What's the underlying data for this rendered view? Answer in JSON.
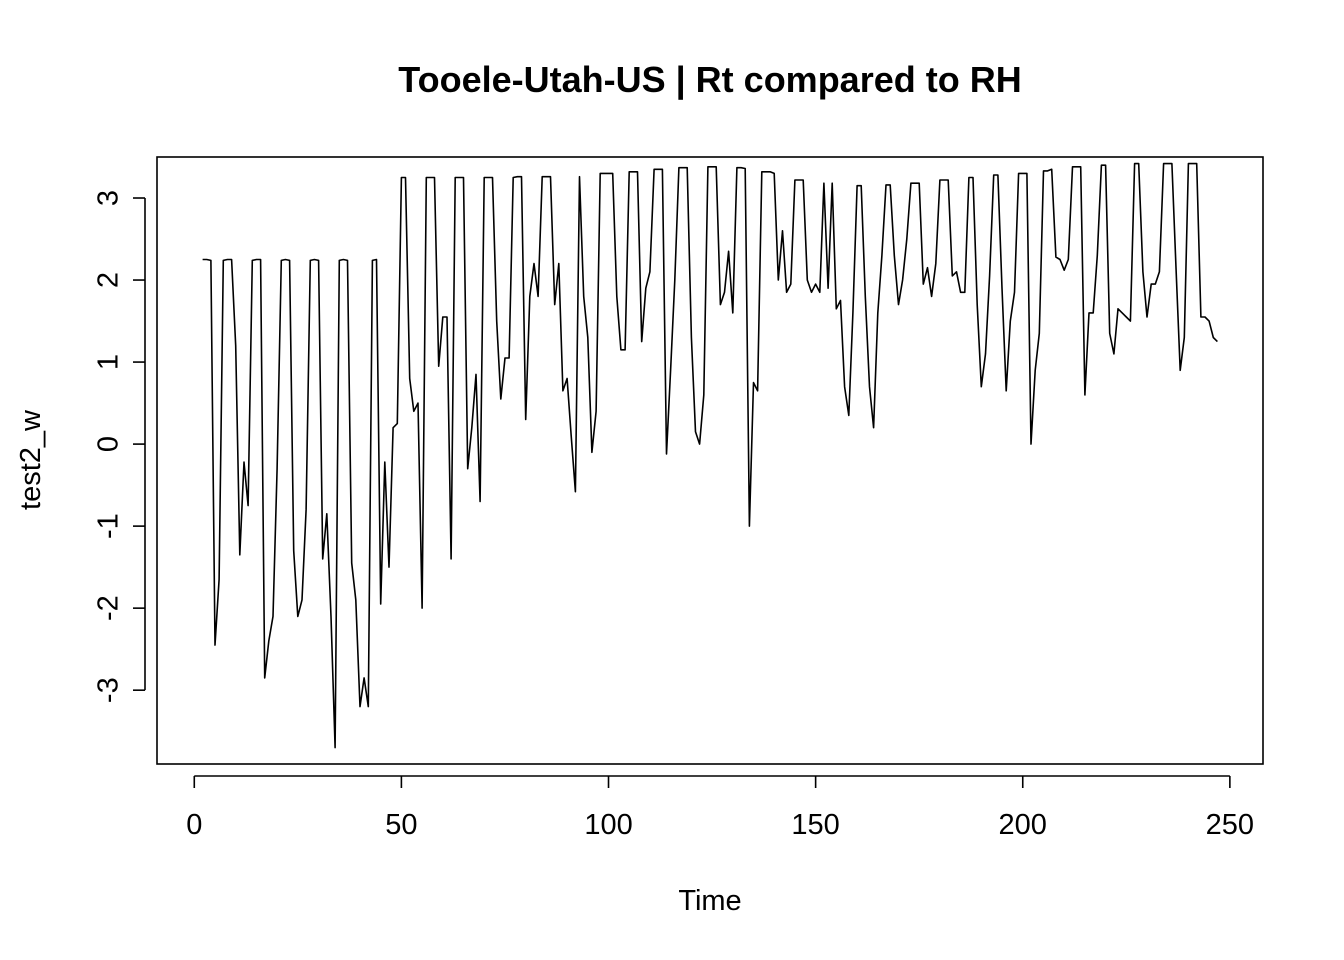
{
  "chart_data": {
    "type": "line",
    "title": "Tooele-Utah-US | Rt compared to RH",
    "xlabel": "Time",
    "ylabel": "test2_w",
    "xlim": [
      -9,
      258
    ],
    "ylim": [
      -3.9,
      3.5
    ],
    "xticks": [
      0,
      50,
      100,
      150,
      200,
      250
    ],
    "yticks": [
      -3,
      -2,
      -1,
      0,
      1,
      2,
      3
    ],
    "grid": false,
    "legend": "none",
    "line_color": "#000000",
    "series": [
      {
        "values": [
          [
            2,
            2.25
          ],
          [
            3,
            2.25
          ],
          [
            4,
            2.24
          ],
          [
            5,
            -2.45
          ],
          [
            6,
            -1.65
          ],
          [
            7,
            2.24
          ],
          [
            8,
            2.25
          ],
          [
            9,
            2.25
          ],
          [
            10,
            1.2
          ],
          [
            11,
            -1.35
          ],
          [
            12,
            -0.22
          ],
          [
            13,
            -0.75
          ],
          [
            14,
            2.24
          ],
          [
            15,
            2.25
          ],
          [
            16,
            2.25
          ],
          [
            17,
            -2.85
          ],
          [
            18,
            -2.4
          ],
          [
            19,
            -2.1
          ],
          [
            20,
            -0.3
          ],
          [
            21,
            2.24
          ],
          [
            22,
            2.25
          ],
          [
            23,
            2.24
          ],
          [
            24,
            -1.3
          ],
          [
            25,
            -2.1
          ],
          [
            26,
            -1.9
          ],
          [
            27,
            -0.8
          ],
          [
            28,
            2.24
          ],
          [
            29,
            2.25
          ],
          [
            30,
            2.24
          ],
          [
            31,
            -1.4
          ],
          [
            32,
            -0.85
          ],
          [
            33,
            -2.1
          ],
          [
            34,
            -3.7
          ],
          [
            35,
            2.24
          ],
          [
            36,
            2.25
          ],
          [
            37,
            2.24
          ],
          [
            38,
            -1.45
          ],
          [
            39,
            -1.9
          ],
          [
            40,
            -3.2
          ],
          [
            41,
            -2.85
          ],
          [
            42,
            -3.2
          ],
          [
            43,
            2.24
          ],
          [
            44,
            2.25
          ],
          [
            45,
            -1.95
          ],
          [
            46,
            -0.22
          ],
          [
            47,
            -1.5
          ],
          [
            48,
            0.2
          ],
          [
            49,
            0.25
          ],
          [
            50,
            3.25
          ],
          [
            51,
            3.25
          ],
          [
            52,
            0.8
          ],
          [
            53,
            0.4
          ],
          [
            54,
            0.5
          ],
          [
            55,
            -2.0
          ],
          [
            56,
            3.25
          ],
          [
            57,
            3.25
          ],
          [
            58,
            3.25
          ],
          [
            59,
            0.95
          ],
          [
            60,
            1.55
          ],
          [
            61,
            1.55
          ],
          [
            62,
            -1.4
          ],
          [
            63,
            3.25
          ],
          [
            64,
            3.25
          ],
          [
            65,
            3.25
          ],
          [
            66,
            -0.3
          ],
          [
            67,
            0.2
          ],
          [
            68,
            0.85
          ],
          [
            69,
            -0.7
          ],
          [
            70,
            3.25
          ],
          [
            71,
            3.25
          ],
          [
            72,
            3.25
          ],
          [
            73,
            1.5
          ],
          [
            74,
            0.55
          ],
          [
            75,
            1.05
          ],
          [
            76,
            1.05
          ],
          [
            77,
            3.25
          ],
          [
            78,
            3.26
          ],
          [
            79,
            3.26
          ],
          [
            80,
            0.3
          ],
          [
            81,
            1.8
          ],
          [
            82,
            2.2
          ],
          [
            83,
            1.8
          ],
          [
            84,
            3.26
          ],
          [
            85,
            3.26
          ],
          [
            86,
            3.26
          ],
          [
            87,
            1.7
          ],
          [
            88,
            2.2
          ],
          [
            89,
            0.65
          ],
          [
            90,
            0.8
          ],
          [
            91,
            0.1
          ],
          [
            92,
            -0.58
          ],
          [
            93,
            3.26
          ],
          [
            94,
            1.8
          ],
          [
            95,
            1.3
          ],
          [
            96,
            -0.1
          ],
          [
            97,
            0.4
          ],
          [
            98,
            3.3
          ],
          [
            99,
            3.3
          ],
          [
            100,
            3.3
          ],
          [
            101,
            3.3
          ],
          [
            102,
            1.8
          ],
          [
            103,
            1.15
          ],
          [
            104,
            1.15
          ],
          [
            105,
            3.32
          ],
          [
            106,
            3.32
          ],
          [
            107,
            3.32
          ],
          [
            108,
            1.25
          ],
          [
            109,
            1.9
          ],
          [
            110,
            2.1
          ],
          [
            111,
            3.35
          ],
          [
            112,
            3.35
          ],
          [
            113,
            3.35
          ],
          [
            114,
            -0.12
          ],
          [
            115,
            0.9
          ],
          [
            116,
            2.0
          ],
          [
            117,
            3.37
          ],
          [
            118,
            3.37
          ],
          [
            119,
            3.37
          ],
          [
            120,
            1.3
          ],
          [
            121,
            0.15
          ],
          [
            122,
            0.0
          ],
          [
            123,
            0.6
          ],
          [
            124,
            3.38
          ],
          [
            125,
            3.38
          ],
          [
            126,
            3.38
          ],
          [
            127,
            1.7
          ],
          [
            128,
            1.85
          ],
          [
            129,
            2.35
          ],
          [
            130,
            1.6
          ],
          [
            131,
            3.37
          ],
          [
            132,
            3.37
          ],
          [
            133,
            3.36
          ],
          [
            134,
            -1.0
          ],
          [
            135,
            0.75
          ],
          [
            136,
            0.65
          ],
          [
            137,
            3.32
          ],
          [
            138,
            3.32
          ],
          [
            139,
            3.32
          ],
          [
            140,
            3.3
          ],
          [
            141,
            2.0
          ],
          [
            142,
            2.6
          ],
          [
            143,
            1.85
          ],
          [
            144,
            1.95
          ],
          [
            145,
            3.22
          ],
          [
            146,
            3.22
          ],
          [
            147,
            3.22
          ],
          [
            148,
            2.0
          ],
          [
            149,
            1.85
          ],
          [
            150,
            1.95
          ],
          [
            151,
            1.85
          ],
          [
            152,
            3.18
          ],
          [
            153,
            1.9
          ],
          [
            154,
            3.18
          ],
          [
            155,
            1.65
          ],
          [
            156,
            1.75
          ],
          [
            157,
            0.7
          ],
          [
            158,
            0.35
          ],
          [
            159,
            1.6
          ],
          [
            160,
            3.15
          ],
          [
            161,
            3.15
          ],
          [
            162,
            1.8
          ],
          [
            163,
            0.7
          ],
          [
            164,
            0.2
          ],
          [
            165,
            1.6
          ],
          [
            166,
            2.3
          ],
          [
            167,
            3.16
          ],
          [
            168,
            3.16
          ],
          [
            169,
            2.3
          ],
          [
            170,
            1.7
          ],
          [
            171,
            2.0
          ],
          [
            172,
            2.5
          ],
          [
            173,
            3.18
          ],
          [
            174,
            3.18
          ],
          [
            175,
            3.18
          ],
          [
            176,
            1.95
          ],
          [
            177,
            2.15
          ],
          [
            178,
            1.8
          ],
          [
            179,
            2.2
          ],
          [
            180,
            3.22
          ],
          [
            181,
            3.22
          ],
          [
            182,
            3.22
          ],
          [
            183,
            2.05
          ],
          [
            184,
            2.1
          ],
          [
            185,
            1.85
          ],
          [
            186,
            1.85
          ],
          [
            187,
            3.25
          ],
          [
            188,
            3.25
          ],
          [
            189,
            1.7
          ],
          [
            190,
            0.7
          ],
          [
            191,
            1.1
          ],
          [
            192,
            2.05
          ],
          [
            193,
            3.28
          ],
          [
            194,
            3.28
          ],
          [
            195,
            1.9
          ],
          [
            196,
            0.65
          ],
          [
            197,
            1.5
          ],
          [
            198,
            1.85
          ],
          [
            199,
            3.3
          ],
          [
            200,
            3.3
          ],
          [
            201,
            3.3
          ],
          [
            202,
            0.0
          ],
          [
            203,
            0.9
          ],
          [
            204,
            1.35
          ],
          [
            205,
            3.33
          ],
          [
            206,
            3.33
          ],
          [
            207,
            3.35
          ],
          [
            208,
            2.28
          ],
          [
            209,
            2.25
          ],
          [
            210,
            2.12
          ],
          [
            211,
            2.25
          ],
          [
            212,
            3.38
          ],
          [
            213,
            3.38
          ],
          [
            214,
            3.38
          ],
          [
            215,
            0.6
          ],
          [
            216,
            1.6
          ],
          [
            217,
            1.6
          ],
          [
            218,
            2.3
          ],
          [
            219,
            3.4
          ],
          [
            220,
            3.4
          ],
          [
            221,
            1.35
          ],
          [
            222,
            1.1
          ],
          [
            223,
            1.65
          ],
          [
            224,
            1.6
          ],
          [
            225,
            1.55
          ],
          [
            226,
            1.5
          ],
          [
            227,
            3.42
          ],
          [
            228,
            3.42
          ],
          [
            229,
            2.1
          ],
          [
            230,
            1.55
          ],
          [
            231,
            1.95
          ],
          [
            232,
            1.95
          ],
          [
            233,
            2.1
          ],
          [
            234,
            3.42
          ],
          [
            235,
            3.42
          ],
          [
            236,
            3.42
          ],
          [
            237,
            2.15
          ],
          [
            238,
            0.9
          ],
          [
            239,
            1.3
          ],
          [
            240,
            3.42
          ],
          [
            241,
            3.42
          ],
          [
            242,
            3.42
          ],
          [
            243,
            1.55
          ],
          [
            244,
            1.55
          ],
          [
            245,
            1.5
          ],
          [
            246,
            1.3
          ],
          [
            247,
            1.25
          ]
        ]
      }
    ]
  }
}
